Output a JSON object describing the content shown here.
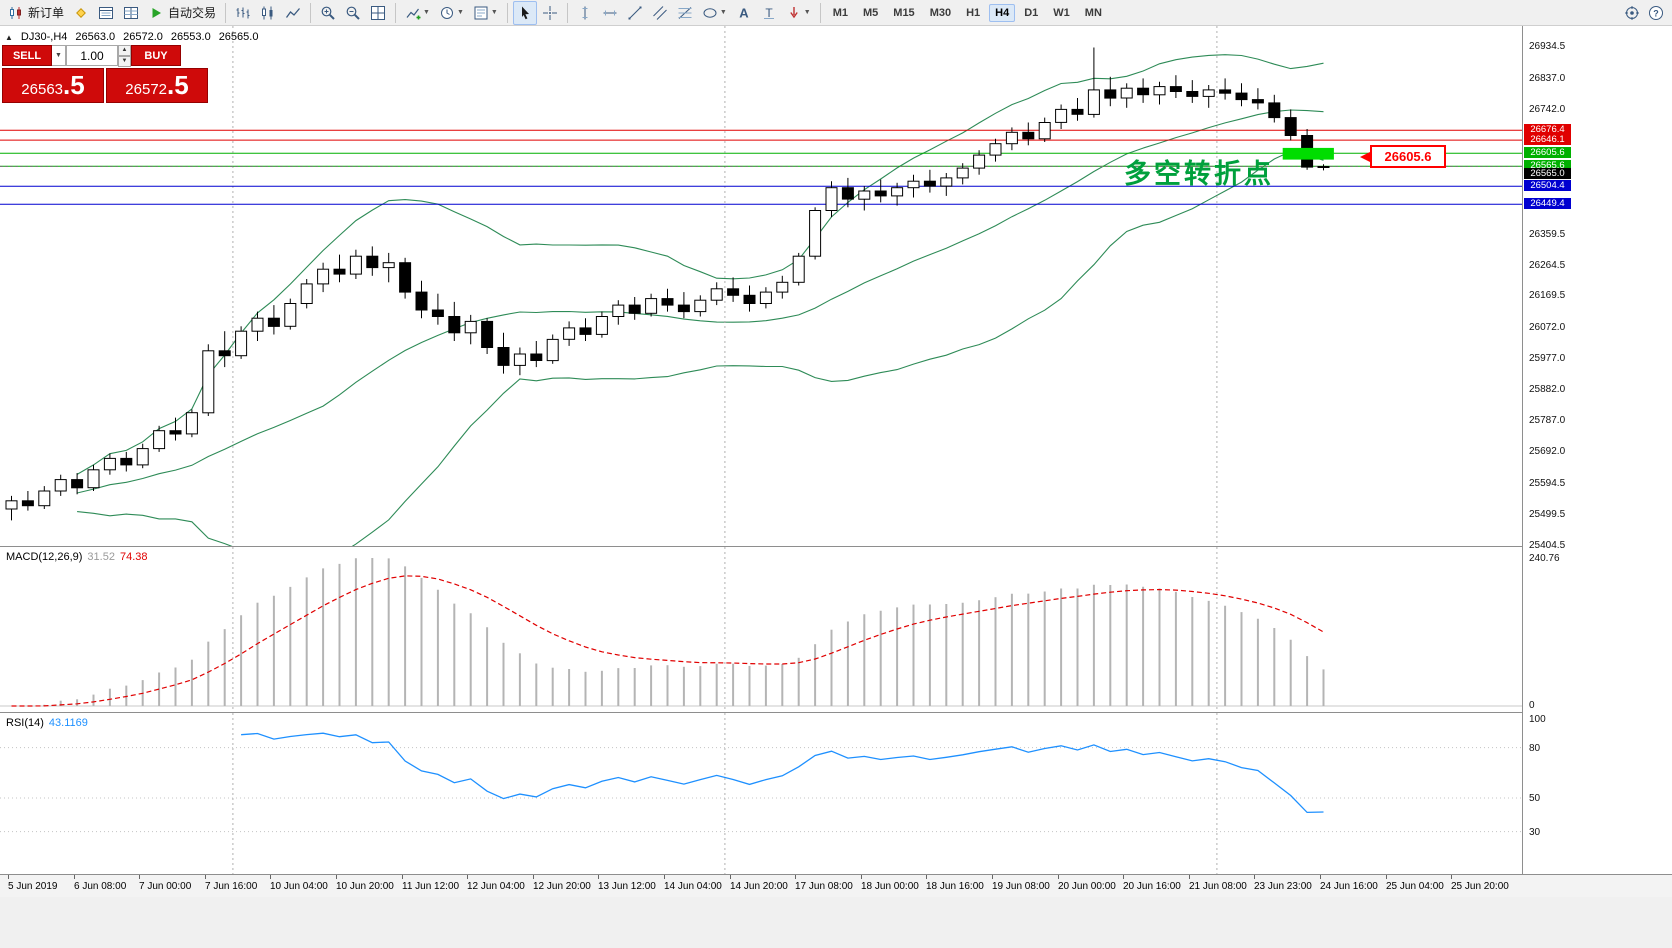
{
  "ui_icons": {
    "collapse": "▲",
    "caret": "▼",
    "up": "▲",
    "down": "▼"
  },
  "toolbar": {
    "items": [
      {
        "name": "new-order",
        "icon": "new-order",
        "label": "新订单"
      },
      {
        "name": "chart-layout",
        "icon": "diamond"
      },
      {
        "name": "market-watch",
        "icon": "market-watch"
      },
      {
        "name": "data-window",
        "icon": "data-window"
      },
      {
        "name": "autotrading",
        "icon": "play",
        "label": "自动交易"
      },
      {
        "sep": true
      },
      {
        "name": "bar-chart-mode",
        "icon": "bars"
      },
      {
        "name": "candle-chart-mode",
        "icon": "candles"
      },
      {
        "name": "line-chart-mode",
        "icon": "linechart"
      },
      {
        "sep": true
      },
      {
        "name": "zoom-in",
        "icon": "zoom-in"
      },
      {
        "name": "zoom-out",
        "icon": "zoom-out"
      },
      {
        "name": "tile-windows",
        "icon": "grid"
      },
      {
        "sep": true
      },
      {
        "name": "indicators",
        "icon": "indicators",
        "caret": true
      },
      {
        "name": "periods",
        "icon": "clock",
        "caret": true
      },
      {
        "name": "templates",
        "icon": "template",
        "caret": true
      },
      {
        "sep": true
      },
      {
        "name": "cursor",
        "icon": "cursor",
        "active": true
      },
      {
        "name": "crosshair",
        "icon": "crosshair"
      },
      {
        "sep": true
      },
      {
        "name": "vertical-line",
        "icon": "vline"
      },
      {
        "name": "horizontal-line",
        "icon": "hline"
      },
      {
        "name": "trendline",
        "icon": "trendline"
      },
      {
        "name": "equidistant-channel",
        "icon": "channel"
      },
      {
        "name": "fibonacci",
        "icon": "fibo"
      },
      {
        "name": "shapes",
        "icon": "shapes",
        "caret": true
      },
      {
        "name": "text",
        "icon": "text-a"
      },
      {
        "name": "text-label",
        "icon": "label-t"
      },
      {
        "name": "arrows",
        "icon": "arrows",
        "caret": true
      },
      {
        "sep": true
      }
    ],
    "timeframes": [
      "M1",
      "M5",
      "M15",
      "M30",
      "H1",
      "H4",
      "D1",
      "W1",
      "MN"
    ],
    "active_timeframe": "H4",
    "right_items": [
      {
        "name": "crosshair-pointer",
        "icon": "pin"
      },
      {
        "name": "help",
        "icon": "help"
      }
    ]
  },
  "quote": {
    "symbol_period": "DJ30-,H4",
    "open": "26563.0",
    "high": "26572.0",
    "low": "26553.0",
    "close": "26565.0"
  },
  "trade_panel": {
    "sell_label": "SELL",
    "buy_label": "BUY",
    "volume": "1.00",
    "sell_price": {
      "small": "26563",
      "big": ".5"
    },
    "buy_price": {
      "small": "26572",
      "big": ".5"
    }
  },
  "annotation": {
    "text": "多空转折点",
    "color": "#00a03c"
  },
  "callout": {
    "text": "26605.6",
    "color": "#ff0000"
  },
  "macd": {
    "title": "MACD(12,26,9)",
    "main_value": "31.52",
    "signal_value": "74.38",
    "axis_top": "240.76",
    "axis_bottom": "0",
    "fast": 12,
    "slow": 26,
    "signal": 9
  },
  "rsi": {
    "title": "RSI(14)",
    "value": "43.1169",
    "period": 14,
    "levels": [
      100,
      80,
      50,
      30
    ]
  },
  "chart_data": {
    "type": "candlestick",
    "symbol": "DJ30-",
    "period": "H4",
    "candles": [
      [
        25515,
        25555,
        25480,
        25540
      ],
      [
        25540,
        25570,
        25510,
        25525
      ],
      [
        25525,
        25585,
        25515,
        25570
      ],
      [
        25570,
        25620,
        25555,
        25605
      ],
      [
        25605,
        25625,
        25560,
        25580
      ],
      [
        25580,
        25650,
        25570,
        25635
      ],
      [
        25635,
        25685,
        25620,
        25670
      ],
      [
        25670,
        25690,
        25630,
        25650
      ],
      [
        25650,
        25715,
        25640,
        25700
      ],
      [
        25700,
        25770,
        25690,
        25755
      ],
      [
        25755,
        25795,
        25725,
        25745
      ],
      [
        25745,
        25820,
        25735,
        25810
      ],
      [
        25810,
        26020,
        25800,
        26000
      ],
      [
        26000,
        26060,
        25950,
        25985
      ],
      [
        25985,
        26075,
        25975,
        26060
      ],
      [
        26060,
        26120,
        26030,
        26100
      ],
      [
        26100,
        26140,
        26050,
        26075
      ],
      [
        26075,
        26160,
        26065,
        26145
      ],
      [
        26145,
        26220,
        26130,
        26205
      ],
      [
        26205,
        26270,
        26180,
        26250
      ],
      [
        26250,
        26295,
        26210,
        26235
      ],
      [
        26235,
        26310,
        26220,
        26290
      ],
      [
        26290,
        26320,
        26230,
        26255
      ],
      [
        26255,
        26300,
        26210,
        26270
      ],
      [
        26270,
        26285,
        26160,
        26180
      ],
      [
        26180,
        26215,
        26100,
        26125
      ],
      [
        26125,
        26175,
        26080,
        26105
      ],
      [
        26105,
        26150,
        26030,
        26055
      ],
      [
        26055,
        26110,
        26020,
        26090
      ],
      [
        26090,
        26100,
        25990,
        26010
      ],
      [
        26010,
        26055,
        25930,
        25955
      ],
      [
        25955,
        26010,
        25925,
        25990
      ],
      [
        25990,
        26030,
        25950,
        25970
      ],
      [
        25970,
        26050,
        25960,
        26035
      ],
      [
        26035,
        26090,
        26015,
        26070
      ],
      [
        26070,
        26100,
        26030,
        26050
      ],
      [
        26050,
        26120,
        26040,
        26105
      ],
      [
        26105,
        26155,
        26080,
        26140
      ],
      [
        26140,
        26165,
        26095,
        26115
      ],
      [
        26115,
        26175,
        26105,
        26160
      ],
      [
        26160,
        26190,
        26120,
        26140
      ],
      [
        26140,
        26180,
        26100,
        26120
      ],
      [
        26120,
        26170,
        26105,
        26155
      ],
      [
        26155,
        26210,
        26140,
        26190
      ],
      [
        26190,
        26225,
        26150,
        26170
      ],
      [
        26170,
        26200,
        26120,
        26145
      ],
      [
        26145,
        26195,
        26130,
        26180
      ],
      [
        26180,
        26230,
        26160,
        26210
      ],
      [
        26210,
        26300,
        26200,
        26290
      ],
      [
        26290,
        26440,
        26280,
        26430
      ],
      [
        26430,
        26520,
        26410,
        26500
      ],
      [
        26500,
        26530,
        26440,
        26465
      ],
      [
        26465,
        26505,
        26430,
        26490
      ],
      [
        26490,
        26525,
        26455,
        26475
      ],
      [
        26475,
        26515,
        26445,
        26500
      ],
      [
        26500,
        26540,
        26470,
        26520
      ],
      [
        26520,
        26555,
        26485,
        26505
      ],
      [
        26505,
        26545,
        26475,
        26530
      ],
      [
        26530,
        26575,
        26510,
        26560
      ],
      [
        26560,
        26615,
        26540,
        26600
      ],
      [
        26600,
        26650,
        26580,
        26635
      ],
      [
        26635,
        26685,
        26615,
        26670
      ],
      [
        26670,
        26700,
        26630,
        26650
      ],
      [
        26650,
        26715,
        26640,
        26700
      ],
      [
        26700,
        26755,
        26680,
        26740
      ],
      [
        26740,
        26775,
        26705,
        26725
      ],
      [
        26725,
        26930,
        26715,
        26800
      ],
      [
        26800,
        26840,
        26750,
        26775
      ],
      [
        26775,
        26820,
        26745,
        26805
      ],
      [
        26805,
        26835,
        26760,
        26785
      ],
      [
        26785,
        26825,
        26755,
        26810
      ],
      [
        26810,
        26845,
        26775,
        26795
      ],
      [
        26795,
        26830,
        26760,
        26780
      ],
      [
        26780,
        26815,
        26745,
        26800
      ],
      [
        26800,
        26835,
        26770,
        26790
      ],
      [
        26790,
        26820,
        26750,
        26770
      ],
      [
        26770,
        26805,
        26740,
        26760
      ],
      [
        26760,
        26785,
        26700,
        26715
      ],
      [
        26715,
        26740,
        26645,
        26660
      ],
      [
        26660,
        26680,
        26555,
        26563
      ],
      [
        26563,
        26572,
        26553,
        26565
      ]
    ],
    "bollinger": {
      "period": 20,
      "deviation": 2,
      "color": "#2e8b57"
    },
    "hlines": [
      {
        "price": 26676.4,
        "color": "#e00000",
        "tag": "26676.4"
      },
      {
        "price": 26646.1,
        "color": "#e00000",
        "tag": "26646.1"
      },
      {
        "price": 26605.6,
        "color": "#00b000",
        "tag": "26605.6"
      },
      {
        "price": 26565.6,
        "color": "#00b000",
        "tag": "26565.6"
      },
      {
        "price": 26504.4,
        "color": "#0000d0",
        "tag": "26504.4"
      },
      {
        "price": 26449.4,
        "color": "#0000d0",
        "tag": "26449.4"
      }
    ],
    "bid": {
      "price": 26565.0,
      "tag": "26565.0"
    },
    "highlight_box": {
      "price_top": 26622,
      "price_bottom": 26586,
      "bar_from": 78,
      "bar_to": 81,
      "color": "#00dd00"
    },
    "week_separator_bars": [
      14,
      44,
      74
    ],
    "price_axis_labels": [
      "26934.5",
      "26837.0",
      "26742.0",
      "26359.5",
      "26264.5",
      "26169.5",
      "26072.0",
      "25977.0",
      "25882.0",
      "25787.0",
      "25692.0",
      "25594.5",
      "25499.5",
      "25404.5"
    ],
    "time_axis_labels": [
      "5 Jun 2019",
      "6 Jun 08:00",
      "7 Jun 00:00",
      "7 Jun 16:00",
      "10 Jun 04:00",
      "10 Jun 20:00",
      "11 Jun 12:00",
      "12 Jun 04:00",
      "12 Jun 20:00",
      "13 Jun 12:00",
      "14 Jun 04:00",
      "14 Jun 20:00",
      "17 Jun 08:00",
      "18 Jun 00:00",
      "18 Jun 16:00",
      "19 Jun 08:00",
      "20 Jun 00:00",
      "20 Jun 16:00",
      "21 Jun 08:00",
      "23 Jun 23:00",
      "24 Jun 16:00",
      "25 Jun 04:00",
      "25 Jun 20:00"
    ]
  }
}
